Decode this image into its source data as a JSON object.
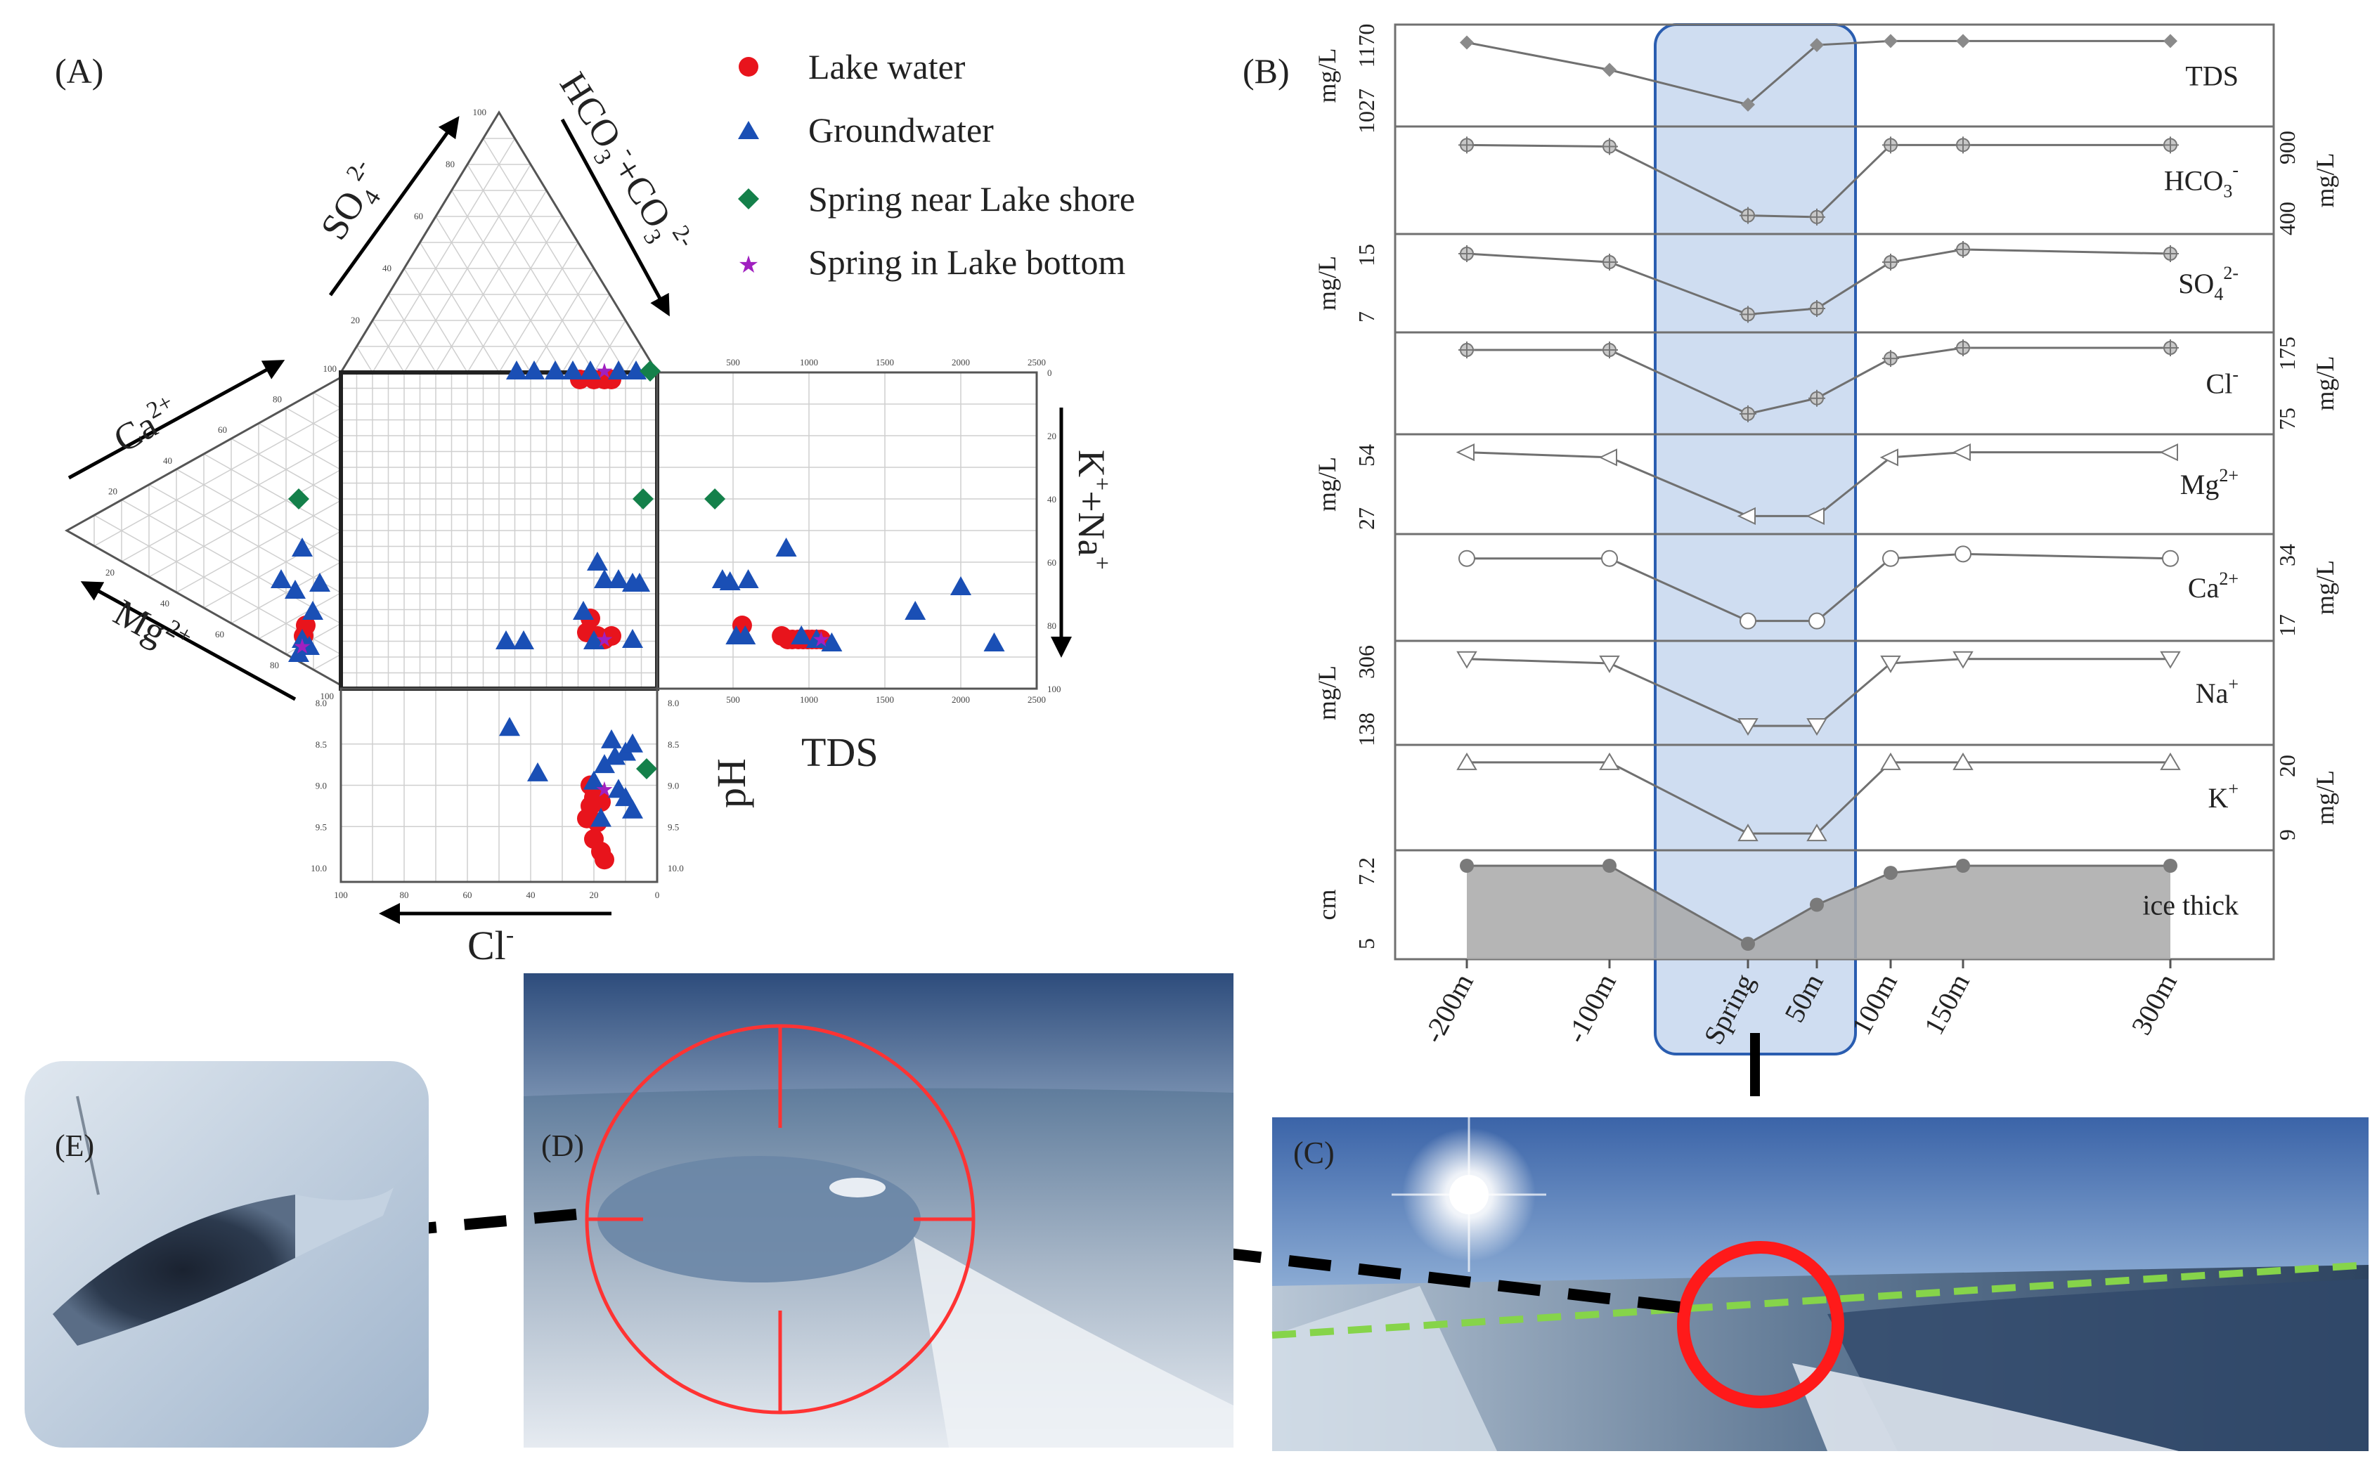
{
  "colors": {
    "lake": "#e8141c",
    "groundwater": "#1a4fb5",
    "spring_shore": "#14804a",
    "spring_bottom": "#a020c0",
    "line_gray": "#707070",
    "highlight_fill": "#c7d7ef",
    "highlight_stroke": "#2a5db0",
    "target_red": "#ff2a2a",
    "green_dash": "#86d44a"
  },
  "panel_a": {
    "label": "(A)",
    "legend": [
      "Lake water",
      "Groundwater",
      "Spring near Lake shore",
      "Spring in Lake bottom"
    ],
    "cation_axis_labels": {
      "ca": "Ca",
      "ca_sup": "2+",
      "mg": "Mg",
      "mg_sup": "2+",
      "k_na": "K",
      "k_na_sup": "+",
      "na_plus": "+Na",
      "na_sup": "+"
    },
    "anion_axis_labels": {
      "so4": "SO",
      "so4_sub": "4",
      "so4_sup": "2-",
      "hco3": "HCO",
      "hco3_sub": "3",
      "hco3_sup": "-",
      "co3": "+CO",
      "co3_sub": "3",
      "co3_sup": "2-",
      "cl": "Cl",
      "cl_sup": "-"
    },
    "tds_label": "TDS",
    "ph_label": "pH",
    "tds_ticks": [
      "500",
      "1000",
      "1500",
      "2000",
      "2500"
    ],
    "tds_ticks_bottom": [
      "500",
      "1000",
      "1500",
      "2000",
      "2500"
    ],
    "ph_ticks": [
      "8.0",
      "8.5",
      "9.0",
      "9.5",
      "10.0"
    ],
    "cl_ticks": [
      "100",
      "80",
      "60",
      "40",
      "20",
      "0"
    ],
    "kna_ticks": [
      "0",
      "20",
      "40",
      "60",
      "80",
      "100"
    ],
    "tri_ticks": [
      "20",
      "40",
      "60",
      "80",
      "100"
    ]
  },
  "panel_b": {
    "label": "(B)",
    "x_ticks": [
      "-200m",
      "-100m",
      "Spring",
      "50m",
      "100m",
      "150m",
      "300m"
    ],
    "x_values": [
      -200,
      -100,
      0,
      50,
      100,
      150,
      300
    ],
    "unit_mgl": "mg/L",
    "unit_cm": "cm",
    "rows": [
      {
        "name": "TDS",
        "sup": "",
        "sub": "",
        "ticks": [
          "1027",
          "1170"
        ],
        "axis_side": "left"
      },
      {
        "name": "HCO",
        "sub": "3",
        "sup": "-",
        "ticks": [
          "400",
          "900"
        ],
        "axis_side": "right"
      },
      {
        "name": "SO",
        "sub": "4",
        "sup": "2-",
        "ticks": [
          "7",
          "15"
        ],
        "axis_side": "left"
      },
      {
        "name": "Cl",
        "sub": "",
        "sup": "-",
        "ticks": [
          "75",
          "175"
        ],
        "axis_side": "right"
      },
      {
        "name": "Mg",
        "sub": "",
        "sup": "2+",
        "ticks": [
          "27",
          "54"
        ],
        "axis_side": "left"
      },
      {
        "name": "Ca",
        "sub": "",
        "sup": "2+",
        "ticks": [
          "17",
          "34"
        ],
        "axis_side": "right"
      },
      {
        "name": "Na",
        "sub": "",
        "sup": "+",
        "ticks": [
          "138",
          "306"
        ],
        "axis_side": "left"
      },
      {
        "name": "K",
        "sub": "",
        "sup": "+",
        "ticks": [
          "9",
          "20"
        ],
        "axis_side": "right"
      },
      {
        "name": "ice thick",
        "sub": "",
        "sup": "",
        "ticks": [
          "5",
          "7.2"
        ],
        "axis_side": "left"
      }
    ]
  },
  "photos": {
    "c": "(C)",
    "d": "(D)",
    "e": "(E)"
  },
  "chart_data": [
    {
      "type": "scatter",
      "title": "",
      "notes": "Piper diagram with TDS and pH side plots",
      "series": [
        {
          "name": "Lake water",
          "tds": [
            560,
            820,
            860,
            890,
            930,
            960,
            990,
            1020,
            1050,
            1080
          ],
          "ph": [
            9.0,
            9.05,
            9.1,
            9.15,
            9.2,
            9.3,
            9.45,
            9.6,
            9.7,
            9.9
          ]
        },
        {
          "name": "Groundwater",
          "tds": [
            430,
            480,
            520,
            580,
            600,
            850,
            950,
            1050,
            1150,
            1700,
            2000,
            2220
          ],
          "ph": [
            8.3,
            8.45,
            8.6,
            8.75,
            8.85,
            8.95,
            9.05,
            9.15,
            9.3,
            9.4,
            8.65,
            8.5
          ]
        },
        {
          "name": "Spring near Lake shore",
          "tds": [
            380
          ],
          "ph": [
            8.8
          ]
        },
        {
          "name": "Spring in Lake bottom",
          "tds": [
            1080
          ],
          "ph": [
            9.05
          ]
        }
      ]
    },
    {
      "type": "line",
      "x": [
        -200,
        -100,
        0,
        50,
        100,
        150,
        300
      ],
      "series": [
        {
          "name": "TDS",
          "values": [
            1165,
            1110,
            1040,
            1160,
            1168,
            1168,
            1168
          ]
        },
        {
          "name": "HCO3-",
          "values": [
            880,
            870,
            420,
            410,
            880,
            880,
            880
          ]
        },
        {
          "name": "SO42-",
          "values": [
            14.5,
            13.5,
            7.3,
            8.0,
            13.5,
            15.0,
            14.5
          ]
        },
        {
          "name": "Cl-",
          "values": [
            172,
            172,
            82,
            104,
            160,
            175,
            175
          ]
        },
        {
          "name": "Mg2+",
          "values": [
            53,
            51,
            28,
            28,
            51,
            53,
            53
          ]
        },
        {
          "name": "Ca2+",
          "values": [
            32,
            32,
            18,
            18,
            32,
            33,
            32
          ]
        },
        {
          "name": "Na+",
          "values": [
            300,
            290,
            146,
            146,
            290,
            300,
            300
          ]
        },
        {
          "name": "K+",
          "values": [
            19.7,
            19.7,
            9.2,
            9.2,
            19.7,
            19.7,
            19.7
          ]
        },
        {
          "name": "ice thick",
          "values": [
            7.2,
            7.2,
            5.0,
            6.1,
            7.0,
            7.2,
            7.2
          ]
        }
      ]
    }
  ]
}
